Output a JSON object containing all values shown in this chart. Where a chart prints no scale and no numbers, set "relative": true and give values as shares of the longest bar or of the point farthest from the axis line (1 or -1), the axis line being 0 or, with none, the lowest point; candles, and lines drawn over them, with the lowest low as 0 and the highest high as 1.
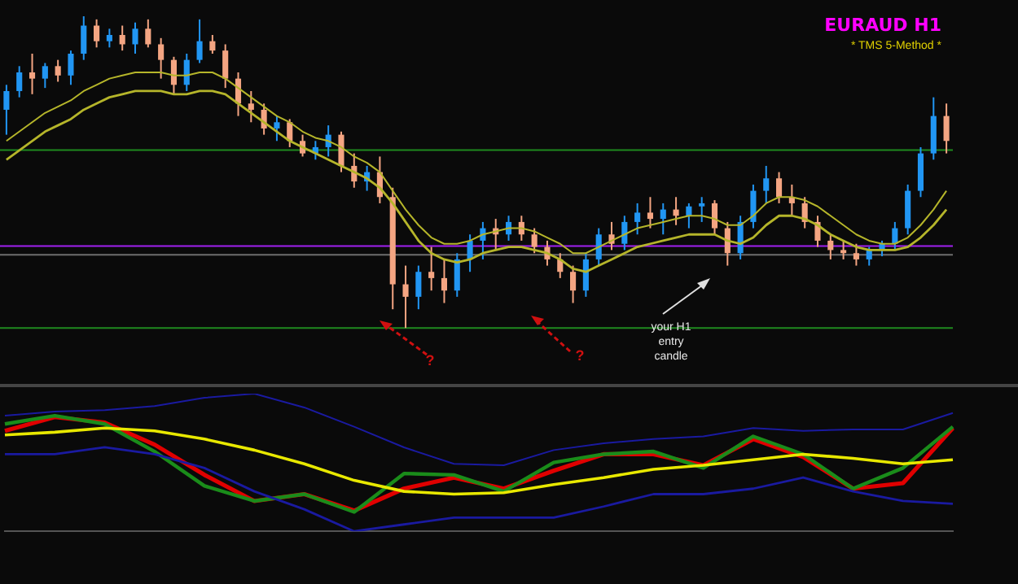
{
  "chart_data": [
    {
      "type": "candlestick",
      "relative": true,
      "legend": false,
      "grid": false,
      "categories": [
        null,
        null,
        null,
        null,
        null,
        null,
        null,
        null,
        null,
        null,
        null,
        null,
        null,
        null,
        null,
        null,
        null,
        null,
        null,
        null,
        null,
        null,
        null,
        null,
        null,
        null,
        null,
        null,
        null,
        null,
        null,
        null,
        null,
        null,
        null,
        null,
        null,
        null,
        null,
        null,
        null,
        null,
        null,
        null,
        null,
        null,
        null,
        null,
        null,
        null,
        null,
        null,
        null,
        null,
        null,
        null,
        null,
        null,
        null,
        null,
        null,
        null,
        null,
        null,
        null,
        null,
        null,
        null,
        null,
        null,
        null,
        null,
        null,
        null
      ],
      "ohlc": [
        [
          0.7,
          0.78,
          0.62,
          0.76
        ],
        [
          0.76,
          0.84,
          0.74,
          0.82
        ],
        [
          0.82,
          0.88,
          0.75,
          0.8
        ],
        [
          0.8,
          0.85,
          0.77,
          0.84
        ],
        [
          0.84,
          0.86,
          0.79,
          0.81
        ],
        [
          0.81,
          0.89,
          0.78,
          0.88
        ],
        [
          0.88,
          1.0,
          0.86,
          0.97
        ],
        [
          0.97,
          0.99,
          0.9,
          0.92
        ],
        [
          0.92,
          0.96,
          0.9,
          0.94
        ],
        [
          0.94,
          0.97,
          0.89,
          0.91
        ],
        [
          0.91,
          0.98,
          0.88,
          0.96
        ],
        [
          0.96,
          0.99,
          0.9,
          0.91
        ],
        [
          0.91,
          0.93,
          0.8,
          0.86
        ],
        [
          0.86,
          0.87,
          0.75,
          0.78
        ],
        [
          0.78,
          0.88,
          0.76,
          0.86
        ],
        [
          0.86,
          0.99,
          0.85,
          0.92
        ],
        [
          0.92,
          0.94,
          0.88,
          0.89
        ],
        [
          0.89,
          0.91,
          0.77,
          0.8
        ],
        [
          0.8,
          0.82,
          0.68,
          0.72
        ],
        [
          0.72,
          0.76,
          0.66,
          0.7
        ],
        [
          0.7,
          0.72,
          0.62,
          0.64
        ],
        [
          0.64,
          0.68,
          0.6,
          0.66
        ],
        [
          0.66,
          0.67,
          0.58,
          0.6
        ],
        [
          0.6,
          0.62,
          0.55,
          0.56
        ],
        [
          0.56,
          0.6,
          0.54,
          0.58
        ],
        [
          0.58,
          0.65,
          0.55,
          0.62
        ],
        [
          0.62,
          0.63,
          0.5,
          0.52
        ],
        [
          0.52,
          0.56,
          0.45,
          0.47
        ],
        [
          0.47,
          0.52,
          0.44,
          0.5
        ],
        [
          0.5,
          0.55,
          0.4,
          0.42
        ],
        [
          0.42,
          0.45,
          0.06,
          0.14
        ],
        [
          0.14,
          0.2,
          0.0,
          0.1
        ],
        [
          0.1,
          0.2,
          0.06,
          0.18
        ],
        [
          0.18,
          0.26,
          0.12,
          0.16
        ],
        [
          0.16,
          0.22,
          0.08,
          0.12
        ],
        [
          0.12,
          0.24,
          0.1,
          0.22
        ],
        [
          0.22,
          0.3,
          0.18,
          0.28
        ],
        [
          0.28,
          0.34,
          0.22,
          0.32
        ],
        [
          0.32,
          0.35,
          0.25,
          0.3
        ],
        [
          0.3,
          0.36,
          0.28,
          0.34
        ],
        [
          0.34,
          0.36,
          0.28,
          0.3
        ],
        [
          0.3,
          0.32,
          0.24,
          0.26
        ],
        [
          0.26,
          0.28,
          0.2,
          0.22
        ],
        [
          0.22,
          0.24,
          0.16,
          0.18
        ],
        [
          0.18,
          0.2,
          0.08,
          0.12
        ],
        [
          0.12,
          0.24,
          0.1,
          0.22
        ],
        [
          0.22,
          0.32,
          0.2,
          0.3
        ],
        [
          0.3,
          0.34,
          0.25,
          0.27
        ],
        [
          0.27,
          0.36,
          0.25,
          0.34
        ],
        [
          0.34,
          0.4,
          0.3,
          0.37
        ],
        [
          0.37,
          0.42,
          0.32,
          0.35
        ],
        [
          0.35,
          0.4,
          0.3,
          0.38
        ],
        [
          0.38,
          0.42,
          0.33,
          0.36
        ],
        [
          0.36,
          0.4,
          0.32,
          0.39
        ],
        [
          0.39,
          0.42,
          0.34,
          0.4
        ],
        [
          0.4,
          0.41,
          0.3,
          0.32
        ],
        [
          0.32,
          0.34,
          0.2,
          0.24
        ],
        [
          0.24,
          0.36,
          0.22,
          0.34
        ],
        [
          0.34,
          0.46,
          0.32,
          0.44
        ],
        [
          0.44,
          0.52,
          0.4,
          0.48
        ],
        [
          0.48,
          0.5,
          0.4,
          0.42
        ],
        [
          0.42,
          0.46,
          0.36,
          0.4
        ],
        [
          0.4,
          0.42,
          0.32,
          0.34
        ],
        [
          0.34,
          0.36,
          0.26,
          0.28
        ],
        [
          0.28,
          0.3,
          0.22,
          0.25
        ],
        [
          0.25,
          0.28,
          0.22,
          0.24
        ],
        [
          0.24,
          0.27,
          0.2,
          0.22
        ],
        [
          0.22,
          0.26,
          0.2,
          0.25
        ],
        [
          0.25,
          0.28,
          0.23,
          0.27
        ],
        [
          0.27,
          0.34,
          0.25,
          0.32
        ],
        [
          0.32,
          0.46,
          0.3,
          0.44
        ],
        [
          0.44,
          0.58,
          0.42,
          0.56
        ],
        [
          0.56,
          0.74,
          0.54,
          0.68
        ],
        [
          0.68,
          0.72,
          0.56,
          0.6
        ]
      ],
      "colors": [
        "#2196f3",
        "#2196f3",
        "#f4a582",
        "#2196f3",
        "#f4a582",
        "#2196f3",
        "#2196f3",
        "#f4a582",
        "#2196f3",
        "#f4a582",
        "#2196f3",
        "#f4a582",
        "#f4a582",
        "#f4a582",
        "#2196f3",
        "#2196f3",
        "#f4a582",
        "#f4a582",
        "#f4a582",
        "#f4a582",
        "#f4a582",
        "#2196f3",
        "#f4a582",
        "#f4a582",
        "#2196f3",
        "#2196f3",
        "#f4a582",
        "#f4a582",
        "#2196f3",
        "#f4a582",
        "#f4a582",
        "#f4a582",
        "#2196f3",
        "#f4a582",
        "#f4a582",
        "#2196f3",
        "#2196f3",
        "#2196f3",
        "#f4a582",
        "#2196f3",
        "#f4a582",
        "#f4a582",
        "#f4a582",
        "#f4a582",
        "#f4a582",
        "#2196f3",
        "#2196f3",
        "#f4a582",
        "#2196f3",
        "#2196f3",
        "#f4a582",
        "#2196f3",
        "#f4a582",
        "#2196f3",
        "#2196f3",
        "#f4a582",
        "#f4a582",
        "#2196f3",
        "#2196f3",
        "#2196f3",
        "#f4a582",
        "#f4a582",
        "#f4a582",
        "#f4a582",
        "#f4a582",
        "#f4a582",
        "#f4a582",
        "#2196f3",
        "#2196f3",
        "#2196f3",
        "#2196f3",
        "#2196f3",
        "#2196f3",
        "#f4a582"
      ],
      "series": [
        {
          "type": "line",
          "color": "#b5b52a",
          "values": [
            0.6,
            0.63,
            0.66,
            0.69,
            0.71,
            0.73,
            0.76,
            0.78,
            0.8,
            0.81,
            0.82,
            0.82,
            0.82,
            0.81,
            0.81,
            0.82,
            0.82,
            0.8,
            0.77,
            0.74,
            0.71,
            0.68,
            0.66,
            0.63,
            0.61,
            0.6,
            0.58,
            0.55,
            0.53,
            0.5,
            0.44,
            0.38,
            0.33,
            0.29,
            0.27,
            0.27,
            0.28,
            0.3,
            0.31,
            0.32,
            0.32,
            0.31,
            0.29,
            0.27,
            0.24,
            0.24,
            0.26,
            0.28,
            0.3,
            0.32,
            0.33,
            0.34,
            0.35,
            0.36,
            0.36,
            0.35,
            0.33,
            0.33,
            0.36,
            0.4,
            0.42,
            0.42,
            0.41,
            0.39,
            0.36,
            0.33,
            0.3,
            0.28,
            0.27,
            0.27,
            0.29,
            0.33,
            0.38,
            0.44
          ]
        },
        {
          "type": "line",
          "color": "#b5b52a",
          "values": [
            0.54,
            0.57,
            0.6,
            0.63,
            0.65,
            0.67,
            0.7,
            0.72,
            0.74,
            0.75,
            0.76,
            0.76,
            0.76,
            0.75,
            0.75,
            0.76,
            0.76,
            0.75,
            0.72,
            0.69,
            0.66,
            0.63,
            0.6,
            0.58,
            0.56,
            0.54,
            0.52,
            0.5,
            0.48,
            0.45,
            0.4,
            0.34,
            0.28,
            0.24,
            0.22,
            0.21,
            0.22,
            0.24,
            0.25,
            0.26,
            0.26,
            0.25,
            0.24,
            0.22,
            0.19,
            0.18,
            0.2,
            0.22,
            0.24,
            0.26,
            0.27,
            0.28,
            0.29,
            0.3,
            0.3,
            0.3,
            0.28,
            0.27,
            0.29,
            0.33,
            0.36,
            0.36,
            0.35,
            0.33,
            0.3,
            0.28,
            0.26,
            0.25,
            0.25,
            0.25,
            0.26,
            0.29,
            0.33,
            0.38
          ]
        }
      ],
      "ref_lines": [
        {
          "axis": "y",
          "value": 0.571,
          "color": "#1f8a1f"
        },
        {
          "axis": "y",
          "value": 0.0,
          "color": "#1f8a1f"
        },
        {
          "axis": "y",
          "value": 0.263,
          "color": "#a020f0"
        },
        {
          "axis": "y",
          "value": 0.235,
          "color": "#6e6e6e"
        }
      ],
      "annotations": [
        "EURAUD H1",
        "* TMS 5-Method *",
        "your H1 entry candle",
        "?",
        "?"
      ]
    },
    {
      "type": "line",
      "relative": true,
      "legend": false,
      "grid": false,
      "categories": [
        null,
        null,
        null,
        null,
        null,
        null,
        null,
        null,
        null,
        null,
        null,
        null,
        null,
        null,
        null,
        null,
        null,
        null,
        null,
        null
      ],
      "series": [
        {
          "color": "#1a1aa0",
          "values": [
            0.84,
            0.87,
            0.88,
            0.91,
            0.97,
            1.0,
            0.9,
            0.76,
            0.61,
            0.49,
            0.48,
            0.59,
            0.64,
            0.67,
            0.69,
            0.75,
            0.73,
            0.74,
            0.74,
            0.86
          ]
        },
        {
          "color": "#1a1aa0",
          "values": [
            0.56,
            0.56,
            0.61,
            0.56,
            0.46,
            0.29,
            0.16,
            0,
            0.05,
            0.1,
            0.1,
            0.1,
            0.18,
            0.27,
            0.27,
            0.31,
            0.39,
            0.29,
            0.22,
            0.2
          ]
        },
        {
          "color": "#e8e800",
          "values": [
            0.7,
            0.72,
            0.75,
            0.73,
            0.67,
            0.59,
            0.49,
            0.37,
            0.29,
            0.27,
            0.28,
            0.34,
            0.39,
            0.45,
            0.48,
            0.52,
            0.56,
            0.53,
            0.49,
            0.52
          ]
        },
        {
          "color": "#1a8c1a",
          "values": [
            0.78,
            0.84,
            0.78,
            0.58,
            0.33,
            0.22,
            0.27,
            0.14,
            0.42,
            0.41,
            0.29,
            0.5,
            0.56,
            0.58,
            0.46,
            0.69,
            0.56,
            0.31,
            0.46,
            0.76
          ]
        },
        {
          "color": "#e00000",
          "values": [
            0.73,
            0.83,
            0.79,
            0.63,
            0.41,
            0.22,
            0.27,
            0.15,
            0.31,
            0.39,
            0.31,
            0.44,
            0.56,
            0.56,
            0.48,
            0.67,
            0.54,
            0.31,
            0.35,
            0.75
          ]
        }
      ]
    }
  ]
}
